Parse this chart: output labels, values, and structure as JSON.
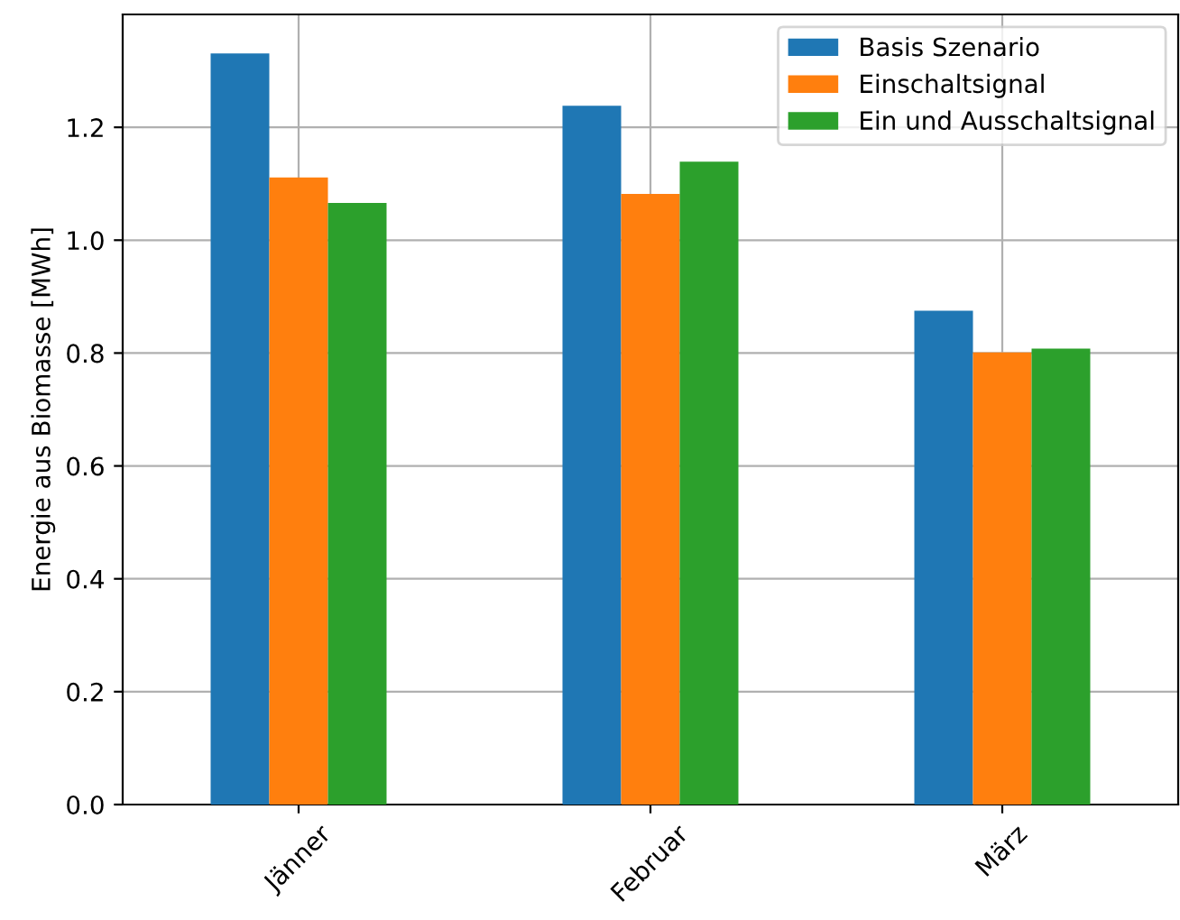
{
  "chart_data": {
    "type": "bar",
    "ylabel": "Energie aus Biomasse [MWh]",
    "categories": [
      "Jänner",
      "Februar",
      "März"
    ],
    "series": [
      {
        "name": "Basis Szenario",
        "color": "#1f77b4",
        "values": [
          1.331,
          1.238,
          0.875
        ]
      },
      {
        "name": "Einschaltsignal",
        "color": "#ff7f0e",
        "values": [
          1.111,
          1.082,
          0.801
        ]
      },
      {
        "name": "Ein und Ausschaltsignal",
        "color": "#2ca02c",
        "values": [
          1.066,
          1.139,
          0.808
        ]
      }
    ],
    "ylim": [
      0,
      1.4
    ],
    "yticks": [
      {
        "value": 0,
        "label": "0.0"
      },
      0.2,
      0.4,
      0.6,
      0.8,
      {
        "value": 1,
        "label": "1.0"
      },
      1.2
    ],
    "grid": true,
    "legend": "top right"
  }
}
